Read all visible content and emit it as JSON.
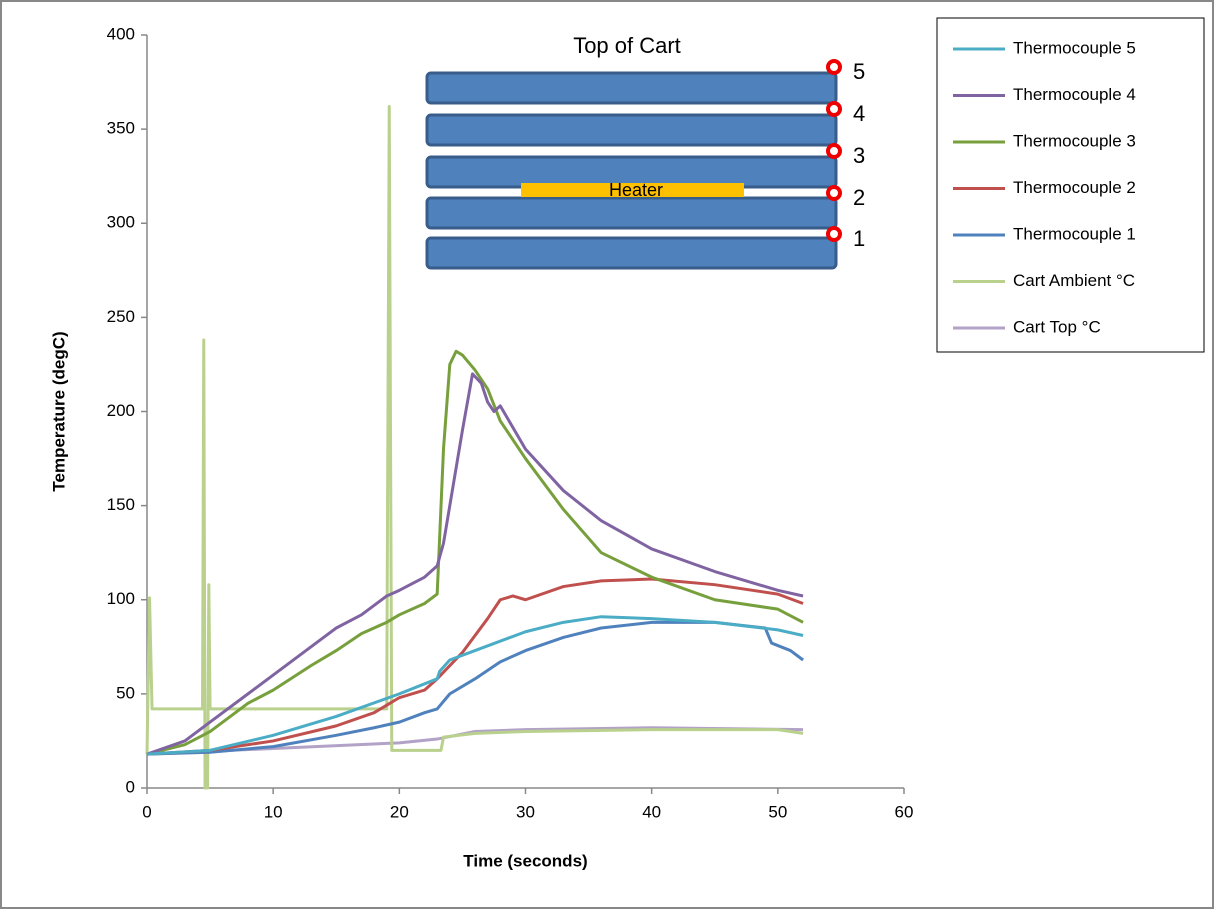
{
  "chart_data": {
    "type": "line",
    "xlabel": "Time (seconds)",
    "ylabel": "Temperature (degC)",
    "xlim": [
      0,
      60
    ],
    "xticks": [
      0,
      10,
      20,
      30,
      40,
      50,
      60
    ],
    "ylim": [
      0,
      400
    ],
    "yticks": [
      0,
      50,
      100,
      150,
      200,
      250,
      300,
      350,
      400
    ],
    "grid": false,
    "legend": "right",
    "inset": {
      "title": "Top of Cart",
      "heater": "Heater",
      "labels": [
        "5",
        "4",
        "3",
        "2",
        "1"
      ]
    },
    "series": [
      {
        "name": "Thermocouple 5",
        "color": "#4bacc6",
        "x": [
          0,
          5,
          10,
          15,
          20,
          23,
          23.2,
          24,
          26,
          30,
          33,
          36,
          40,
          45,
          50,
          52
        ],
        "values": [
          18,
          20,
          28,
          38,
          50,
          58,
          62,
          68,
          73,
          83,
          88,
          91,
          90,
          88,
          84,
          81
        ]
      },
      {
        "name": "Thermocouple 4",
        "color": "#8064a2",
        "x": [
          0,
          3,
          5,
          8,
          10,
          13,
          15,
          17,
          19,
          20,
          22,
          23,
          23.5,
          24,
          25,
          25.8,
          26.5,
          27,
          27.5,
          28,
          30,
          33,
          36,
          40,
          45,
          50,
          52
        ],
        "values": [
          18,
          25,
          35,
          50,
          60,
          75,
          85,
          92,
          102,
          105,
          112,
          118,
          130,
          150,
          190,
          220,
          215,
          205,
          200,
          203,
          180,
          158,
          142,
          127,
          115,
          105,
          102
        ]
      },
      {
        "name": "Thermocouple 3",
        "color": "#77a03c",
        "x": [
          0,
          3,
          5,
          8,
          10,
          13,
          15,
          17,
          19,
          20,
          22,
          23,
          23.5,
          24,
          24.5,
          25,
          26,
          27,
          28,
          30,
          33,
          36,
          40,
          45,
          50,
          52
        ],
        "values": [
          18,
          23,
          30,
          45,
          52,
          65,
          73,
          82,
          88,
          92,
          98,
          103,
          180,
          225,
          232,
          230,
          222,
          212,
          195,
          175,
          148,
          125,
          112,
          100,
          95,
          88
        ]
      },
      {
        "name": "Thermocouple 2",
        "color": "#c0504d",
        "x": [
          0,
          5,
          10,
          15,
          18,
          19,
          20,
          22,
          23,
          25,
          27,
          28,
          29,
          30,
          33,
          36,
          40,
          45,
          50,
          52
        ],
        "values": [
          18,
          20,
          25,
          33,
          40,
          44,
          48,
          52,
          58,
          72,
          90,
          100,
          102,
          100,
          107,
          110,
          111,
          108,
          103,
          98
        ]
      },
      {
        "name": "Thermocouple 1",
        "color": "#4f81bd",
        "x": [
          0,
          5,
          10,
          15,
          18,
          20,
          22,
          23,
          24,
          26,
          28,
          30,
          33,
          36,
          40,
          45,
          49,
          49.5,
          51,
          52
        ],
        "values": [
          18,
          19,
          22,
          28,
          32,
          35,
          40,
          42,
          50,
          58,
          67,
          73,
          80,
          85,
          88,
          88,
          85,
          77,
          73,
          68
        ]
      },
      {
        "name": "Cart Ambient °C",
        "color": "#b9d18d",
        "x": [
          0,
          0.2,
          0.4,
          4.4,
          4.5,
          4.6,
          4.8,
          4.9,
          5,
          19,
          19.2,
          19.4,
          23.3,
          23.5,
          26,
          30,
          40,
          50,
          52
        ],
        "values": [
          18,
          101,
          42,
          42,
          238,
          0,
          0,
          108,
          42,
          42,
          362,
          20,
          20,
          27,
          29,
          30,
          31,
          31,
          29
        ]
      },
      {
        "name": "Cart Top °C",
        "color": "#b3a2c7",
        "x": [
          0,
          10,
          20,
          23,
          26,
          30,
          40,
          52
        ],
        "values": [
          18,
          21,
          24,
          26,
          30,
          31,
          32,
          31
        ]
      }
    ]
  }
}
